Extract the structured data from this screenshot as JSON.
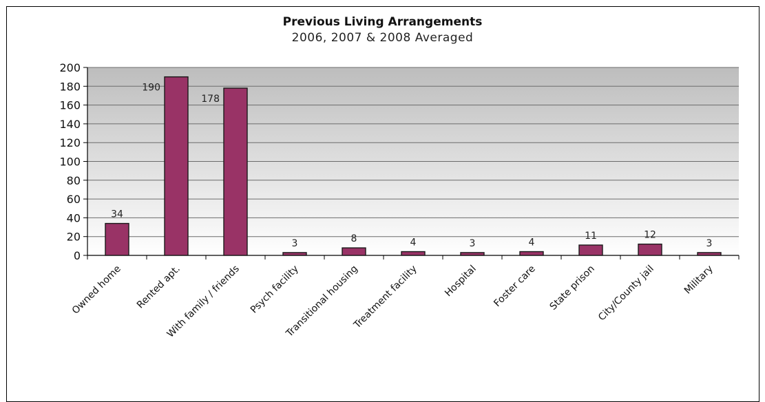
{
  "chart_data": {
    "type": "bar",
    "title": "Previous Living Arrangements",
    "subtitle": "2006, 2007 & 2008 Averaged",
    "xlabel": "",
    "ylabel": "",
    "ylim": [
      0,
      200
    ],
    "ytick_step": 20,
    "grid": true,
    "legend": "none",
    "categories": [
      "Owned home",
      "Rented apt.",
      "With family / friends",
      "Psych facility",
      "Transitional housing",
      "Treatment facility",
      "Hospital",
      "Foster care",
      "State prison",
      "City/County jail",
      "Military"
    ],
    "values": [
      34,
      190,
      178,
      3,
      8,
      4,
      3,
      4,
      11,
      12,
      3
    ],
    "bar_color": "#993366",
    "plot_gradient_top": "#bdbdbd",
    "plot_gradient_bottom": "#ffffff"
  }
}
